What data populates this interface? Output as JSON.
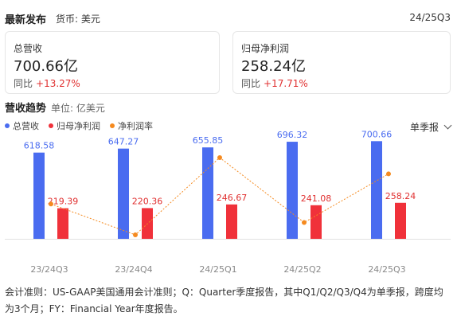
{
  "header": {
    "title": "最新发布",
    "currency": "货币: 美元",
    "period": "24/25Q3"
  },
  "cards": [
    {
      "label": "总营收",
      "value": "700.66亿",
      "yoy_label": "同比",
      "yoy_value": "+13.27%"
    },
    {
      "label": "归母净利润",
      "value": "258.24亿",
      "yoy_label": "同比",
      "yoy_value": "+17.71%"
    }
  ],
  "section": {
    "title": "营收趋势",
    "unit": "单位: 亿美元"
  },
  "legend": [
    {
      "name": "总营收",
      "color": "#4a6cf0"
    },
    {
      "name": "归母净利润",
      "color": "#f0313a"
    },
    {
      "name": "净利润率",
      "color": "#f58a1f"
    }
  ],
  "mode_label": "单季报",
  "chart_data": {
    "type": "bar",
    "categories": [
      "23/24Q3",
      "23/24Q4",
      "24/25Q1",
      "24/25Q2",
      "24/25Q3"
    ],
    "series": [
      {
        "name": "总营收",
        "type": "bar",
        "color": "#4a6cf0",
        "values": [
          618.58,
          647.27,
          655.85,
          696.32,
          700.66
        ]
      },
      {
        "name": "归母净利润",
        "type": "bar",
        "color": "#f0313a",
        "values": [
          219.39,
          220.36,
          246.67,
          241.08,
          258.24
        ]
      },
      {
        "name": "净利润率",
        "type": "line",
        "color": "#f58a1f",
        "values": [
          35.47,
          34.05,
          37.61,
          34.62,
          36.86
        ]
      }
    ]
  },
  "footnote": "会计准则：US-GAAP美国通用会计准则；Q：Quarter季度报告，其中Q1/Q2/Q3/Q4为单季报，跨度均为3个月；FY：Financial Year年度报告。"
}
